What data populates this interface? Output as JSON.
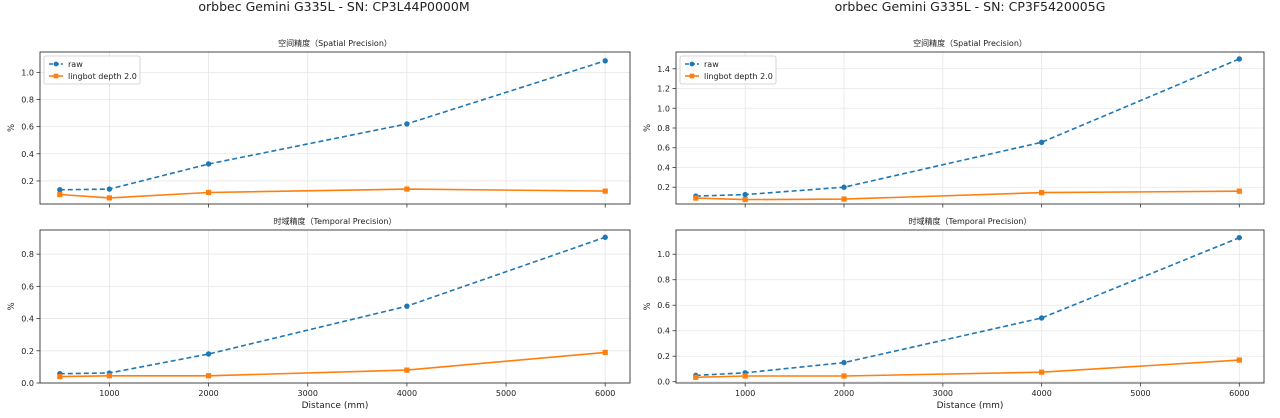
{
  "figure": {
    "left_title": "orbbec Gemini G335L - SN: CP3L44P0000M",
    "right_title": "orbbec Gemini G335L - SN: CP3F5420005G"
  },
  "colors": {
    "raw": "#1f77b4",
    "lingbot": "#ff7f0e",
    "grid": "#e6e6e6",
    "axes": "#333333"
  },
  "chart_data": [
    {
      "type": "line",
      "title": "空间精度（Spatial Precision）",
      "xlabel": "",
      "ylabel": "%",
      "x": [
        500,
        1000,
        2000,
        4000,
        6000
      ],
      "xlim": [
        300,
        6250
      ],
      "xticks": [
        1000,
        2000,
        3000,
        4000,
        5000,
        6000
      ],
      "ylim": [
        0.03,
        1.15
      ],
      "yticks": [
        0.2,
        0.4,
        0.6,
        0.8,
        1.0
      ],
      "grid": true,
      "legend": "top-left",
      "series": [
        {
          "name": "raw",
          "style": "dashed",
          "marker": "circle",
          "values": [
            0.135,
            0.14,
            0.325,
            0.62,
            1.085
          ]
        },
        {
          "name": "lingbot depth 2.0",
          "style": "solid",
          "marker": "square",
          "values": [
            0.1,
            0.075,
            0.115,
            0.14,
            0.125
          ]
        }
      ]
    },
    {
      "type": "line",
      "title": "时域精度（Temporal Precision）",
      "xlabel": "Distance (mm)",
      "ylabel": "%",
      "x": [
        500,
        1000,
        2000,
        4000,
        6000
      ],
      "xlim": [
        300,
        6250
      ],
      "xticks": [
        1000,
        2000,
        3000,
        4000,
        5000,
        6000
      ],
      "ylim": [
        0.0,
        0.95
      ],
      "yticks": [
        0.0,
        0.2,
        0.4,
        0.6,
        0.8
      ],
      "grid": true,
      "legend": "",
      "series": [
        {
          "name": "raw",
          "style": "dashed",
          "marker": "circle",
          "values": [
            0.058,
            0.062,
            0.18,
            0.477,
            0.905
          ]
        },
        {
          "name": "lingbot depth 2.0",
          "style": "solid",
          "marker": "square",
          "values": [
            0.04,
            0.045,
            0.045,
            0.08,
            0.19
          ]
        }
      ]
    },
    {
      "type": "line",
      "title": "空间精度（Spatial Precision）",
      "xlabel": "",
      "ylabel": "%",
      "x": [
        500,
        1000,
        2000,
        4000,
        6000
      ],
      "xlim": [
        300,
        6250
      ],
      "xticks": [
        1000,
        2000,
        3000,
        4000,
        5000,
        6000
      ],
      "ylim": [
        0.03,
        1.57
      ],
      "yticks": [
        0.2,
        0.4,
        0.6,
        0.8,
        1.0,
        1.2,
        1.4
      ],
      "grid": true,
      "legend": "top-left",
      "series": [
        {
          "name": "raw",
          "style": "dashed",
          "marker": "circle",
          "values": [
            0.11,
            0.125,
            0.2,
            0.655,
            1.5
          ]
        },
        {
          "name": "lingbot depth 2.0",
          "style": "solid",
          "marker": "square",
          "values": [
            0.09,
            0.075,
            0.08,
            0.145,
            0.16
          ]
        }
      ]
    },
    {
      "type": "line",
      "title": "时域精度（Temporal Precision）",
      "xlabel": "Distance (mm)",
      "ylabel": "%",
      "x": [
        500,
        1000,
        2000,
        4000,
        6000
      ],
      "xlim": [
        300,
        6250
      ],
      "xticks": [
        1000,
        2000,
        3000,
        4000,
        5000,
        6000
      ],
      "ylim": [
        -0.01,
        1.19
      ],
      "yticks": [
        0.0,
        0.2,
        0.4,
        0.6,
        0.8,
        1.0
      ],
      "grid": true,
      "legend": "",
      "series": [
        {
          "name": "raw",
          "style": "dashed",
          "marker": "circle",
          "values": [
            0.05,
            0.07,
            0.15,
            0.5,
            1.13
          ]
        },
        {
          "name": "lingbot depth 2.0",
          "style": "solid",
          "marker": "square",
          "values": [
            0.035,
            0.045,
            0.045,
            0.075,
            0.17
          ]
        }
      ]
    }
  ]
}
